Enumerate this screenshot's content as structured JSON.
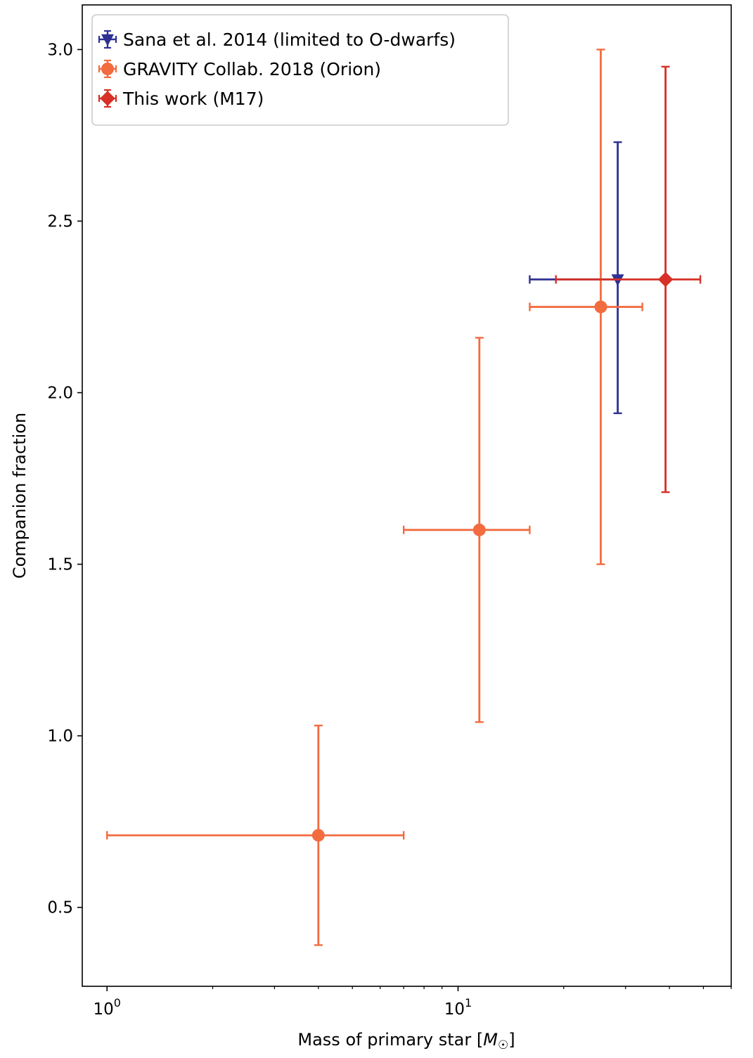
{
  "chart_data": {
    "type": "scatter",
    "xlabel": "Mass of primary star [M☉]",
    "ylabel": "Companion fraction",
    "x_scale": "log",
    "xlim": [
      0.85,
      60
    ],
    "ylim": [
      0.27,
      3.13
    ],
    "x_ticks": [
      {
        "value": 1,
        "base": "10",
        "exp": "0"
      },
      {
        "value": 10,
        "base": "10",
        "exp": "1"
      }
    ],
    "y_ticks": [
      {
        "value": 0.5,
        "label": "0.5"
      },
      {
        "value": 1.0,
        "label": "1.0"
      },
      {
        "value": 1.5,
        "label": "1.5"
      },
      {
        "value": 2.0,
        "label": "2.0"
      },
      {
        "value": 2.5,
        "label": "2.5"
      },
      {
        "value": 3.0,
        "label": "3.0"
      }
    ],
    "grid": false,
    "legend_position": "top-left",
    "series": [
      {
        "name": "Sana et al. 2014 (limited to O-dwarfs)",
        "color": "#2e3192",
        "marker": "triangle-down",
        "points": [
          {
            "x": 28.5,
            "y": 2.33,
            "xlo": 16,
            "xhi": 28.5,
            "ylo": 1.94,
            "yhi": 2.73
          }
        ]
      },
      {
        "name": "GRAVITY Collab. 2018 (Orion)",
        "color": "#f26c40",
        "marker": "circle",
        "points": [
          {
            "x": 4,
            "y": 0.71,
            "xlo": 1,
            "xhi": 7,
            "ylo": 0.39,
            "yhi": 1.03
          },
          {
            "x": 11.5,
            "y": 1.6,
            "xlo": 7,
            "xhi": 16,
            "ylo": 1.04,
            "yhi": 2.16
          },
          {
            "x": 25.5,
            "y": 2.25,
            "xlo": 16,
            "xhi": 33.5,
            "ylo": 1.5,
            "yhi": 3.0
          }
        ]
      },
      {
        "name": "This work (M17)",
        "color": "#d63027",
        "marker": "diamond",
        "points": [
          {
            "x": 39,
            "y": 2.33,
            "xlo": 19,
            "xhi": 49,
            "ylo": 1.71,
            "yhi": 2.95
          }
        ]
      }
    ]
  }
}
